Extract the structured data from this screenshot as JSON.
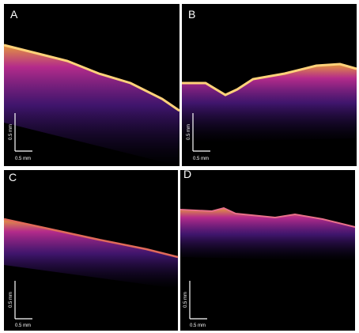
{
  "panels": [
    {
      "label": "A",
      "scale_vertical": "0.5 mm",
      "scale_horizontal": "0.5 mm"
    },
    {
      "label": "B",
      "scale_vertical": "0.5 mm",
      "scale_horizontal": "0.5 mm"
    },
    {
      "label": "C",
      "scale_vertical": "0.5 mm",
      "scale_horizontal": "0.5 mm"
    },
    {
      "label": "D",
      "scale_vertical": "0.5 mm",
      "scale_horizontal": "0.5 mm"
    }
  ]
}
